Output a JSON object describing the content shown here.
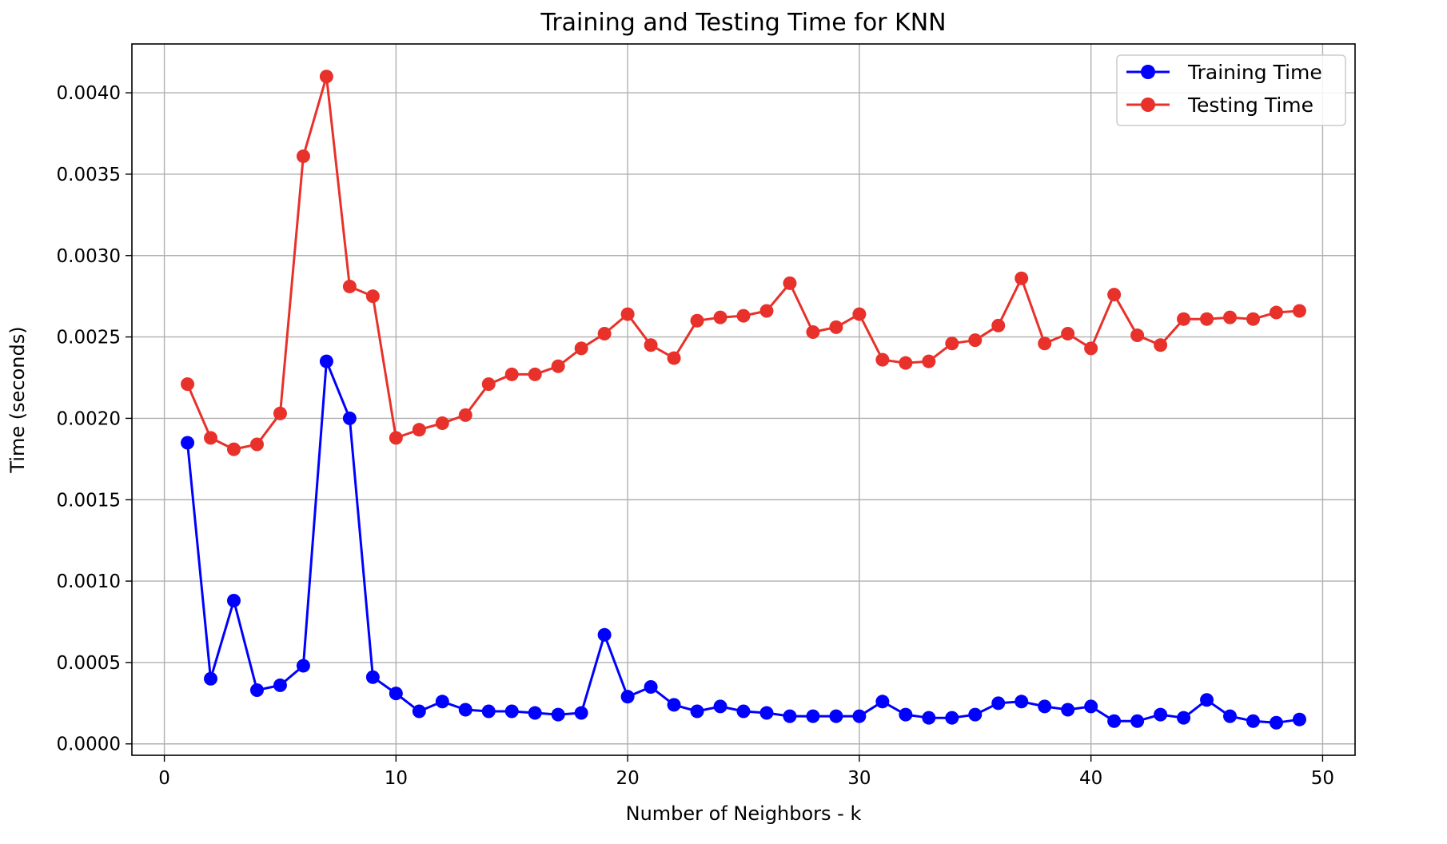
{
  "chart_data": {
    "type": "line",
    "title": "Training and Testing Time for KNN",
    "xlabel": "Number of Neighbors - k",
    "ylabel": "Time (seconds)",
    "xlim": [
      -1.4,
      51.4
    ],
    "ylim": [
      -7e-05,
      0.0043
    ],
    "xticks": [
      0,
      10,
      20,
      30,
      40,
      50
    ],
    "xtick_labels": [
      "0",
      "10",
      "20",
      "30",
      "40",
      "50"
    ],
    "yticks": [
      0,
      0.0005,
      0.001,
      0.0015,
      0.002,
      0.0025,
      0.003,
      0.0035,
      0.004
    ],
    "ytick_labels": [
      "0.0000",
      "0.0005",
      "0.0010",
      "0.0015",
      "0.0020",
      "0.0025",
      "0.0030",
      "0.0035",
      "0.0040"
    ],
    "grid": true,
    "legend_position": "top-right",
    "x": [
      1,
      2,
      3,
      4,
      5,
      6,
      7,
      8,
      9,
      10,
      11,
      12,
      13,
      14,
      15,
      16,
      17,
      18,
      19,
      20,
      21,
      22,
      23,
      24,
      25,
      26,
      27,
      28,
      29,
      30,
      31,
      32,
      33,
      34,
      35,
      36,
      37,
      38,
      39,
      40,
      41,
      42,
      43,
      44,
      45,
      46,
      47,
      48,
      49
    ],
    "series": [
      {
        "name": "Training Time",
        "color": "#0000ff",
        "values": [
          0.00185,
          0.0004,
          0.00088,
          0.00033,
          0.00036,
          0.00048,
          0.00235,
          0.002,
          0.00041,
          0.00031,
          0.0002,
          0.00026,
          0.00021,
          0.0002,
          0.0002,
          0.00019,
          0.00018,
          0.00019,
          0.00067,
          0.00029,
          0.00035,
          0.00024,
          0.0002,
          0.00023,
          0.0002,
          0.00019,
          0.00017,
          0.00017,
          0.00017,
          0.00017,
          0.00026,
          0.00018,
          0.00016,
          0.00016,
          0.00018,
          0.00025,
          0.00026,
          0.00023,
          0.00021,
          0.00023,
          0.00014,
          0.00014,
          0.00018,
          0.00016,
          0.00027,
          0.00017,
          0.00014,
          0.00013,
          0.00015
        ]
      },
      {
        "name": "Testing Time",
        "color": "#e8312a",
        "values": [
          0.00221,
          0.00188,
          0.00181,
          0.00184,
          0.00203,
          0.00361,
          0.0041,
          0.00281,
          0.00275,
          0.00188,
          0.00193,
          0.00197,
          0.00202,
          0.00221,
          0.00227,
          0.00227,
          0.00232,
          0.00243,
          0.00252,
          0.00264,
          0.00245,
          0.00237,
          0.0026,
          0.00262,
          0.00263,
          0.00266,
          0.00283,
          0.00253,
          0.00256,
          0.00264,
          0.00236,
          0.00234,
          0.00235,
          0.00246,
          0.00248,
          0.00257,
          0.00286,
          0.00246,
          0.00252,
          0.00243,
          0.00276,
          0.00251,
          0.00245,
          0.00261,
          0.00261,
          0.00262,
          0.00261,
          0.00265,
          0.00266
        ]
      }
    ]
  }
}
